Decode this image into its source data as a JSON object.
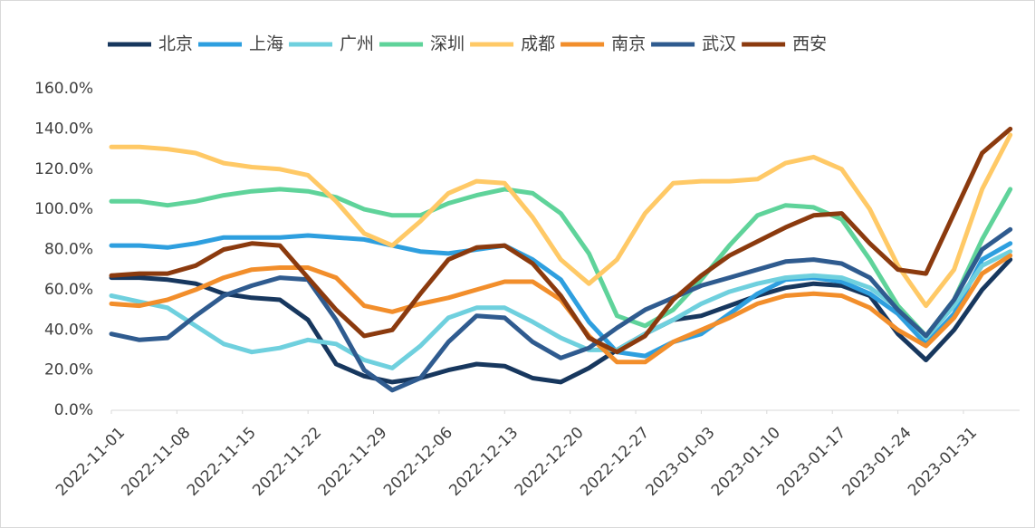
{
  "chart_data": {
    "type": "line",
    "x": [
      "2022-11-01",
      "2022-11-04",
      "2022-11-07",
      "2022-11-10",
      "2022-11-13",
      "2022-11-16",
      "2022-11-19",
      "2022-11-22",
      "2022-11-25",
      "2022-11-28",
      "2022-12-01",
      "2022-12-04",
      "2022-12-07",
      "2022-12-10",
      "2022-12-13",
      "2022-12-16",
      "2022-12-19",
      "2022-12-22",
      "2022-12-25",
      "2022-12-28",
      "2022-12-31",
      "2023-01-03",
      "2023-01-06",
      "2023-01-09",
      "2023-01-12",
      "2023-01-15",
      "2023-01-18",
      "2023-01-21",
      "2023-01-24",
      "2023-01-27",
      "2023-01-30",
      "2023-02-02",
      "2023-02-05"
    ],
    "xlim": [
      "2022-11-01",
      "2023-02-06"
    ],
    "xticks": [
      "2022-11-01",
      "2022-11-08",
      "2022-11-15",
      "2022-11-22",
      "2022-11-29",
      "2022-12-06",
      "2022-12-13",
      "2022-12-20",
      "2022-12-27",
      "2023-01-03",
      "2023-01-10",
      "2023-01-17",
      "2023-01-24",
      "2023-01-31"
    ],
    "ylim": [
      0,
      160
    ],
    "yticks": [
      {
        "value": 0,
        "label": "0.0%"
      },
      {
        "value": 20,
        "label": "20.0%"
      },
      {
        "value": 40,
        "label": "40.0%"
      },
      {
        "value": 60,
        "label": "60.0%"
      },
      {
        "value": 80,
        "label": "80.0%"
      },
      {
        "value": 100,
        "label": "100.0%"
      },
      {
        "value": 120,
        "label": "120.0%"
      },
      {
        "value": 140,
        "label": "140.0%"
      },
      {
        "value": 160,
        "label": "160.0%"
      }
    ],
    "legend": "top",
    "series": [
      {
        "name": "北京",
        "color": "#17375e",
        "values": [
          66,
          66,
          65,
          63,
          58,
          56,
          55,
          45,
          23,
          17,
          14,
          16,
          20,
          23,
          22,
          16,
          14,
          21,
          30,
          38,
          45,
          47,
          52,
          57,
          61,
          63,
          62,
          57,
          38,
          25,
          40,
          60,
          75
        ]
      },
      {
        "name": "上海",
        "color": "#2e9fdf",
        "values": [
          82,
          82,
          81,
          83,
          86,
          86,
          86,
          87,
          86,
          85,
          82,
          79,
          78,
          80,
          82,
          75,
          65,
          44,
          29,
          27,
          34,
          38,
          48,
          58,
          65,
          66,
          64,
          58,
          48,
          33,
          48,
          75,
          83
        ]
      },
      {
        "name": "广州",
        "color": "#6fd0de",
        "values": [
          57,
          54,
          51,
          42,
          33,
          29,
          31,
          35,
          33,
          25,
          21,
          32,
          46,
          51,
          51,
          44,
          36,
          30,
          30,
          38,
          45,
          53,
          59,
          63,
          66,
          67,
          66,
          61,
          51,
          36,
          52,
          72,
          79
        ]
      },
      {
        "name": "深圳",
        "color": "#5fd39a",
        "values": [
          104,
          104,
          102,
          104,
          107,
          109,
          110,
          109,
          106,
          100,
          97,
          97,
          103,
          107,
          110,
          108,
          98,
          78,
          47,
          42,
          50,
          65,
          82,
          97,
          102,
          101,
          95,
          75,
          52,
          37,
          55,
          85,
          110
        ]
      },
      {
        "name": "成都",
        "color": "#ffc966",
        "values": [
          131,
          131,
          130,
          128,
          123,
          121,
          120,
          117,
          104,
          88,
          82,
          94,
          108,
          114,
          113,
          96,
          75,
          63,
          75,
          98,
          113,
          114,
          114,
          115,
          123,
          126,
          120,
          100,
          72,
          52,
          70,
          110,
          137
        ]
      },
      {
        "name": "南京",
        "color": "#f28e2b",
        "values": [
          53,
          52,
          55,
          60,
          66,
          70,
          71,
          71,
          66,
          52,
          49,
          53,
          56,
          60,
          64,
          64,
          55,
          37,
          24,
          24,
          34,
          40,
          46,
          53,
          57,
          58,
          57,
          51,
          40,
          32,
          46,
          68,
          77
        ]
      },
      {
        "name": "武汉",
        "color": "#2f5b8f",
        "values": [
          38,
          35,
          36,
          47,
          57,
          62,
          66,
          65,
          45,
          20,
          10,
          16,
          34,
          47,
          46,
          34,
          26,
          31,
          41,
          50,
          56,
          62,
          66,
          70,
          74,
          75,
          73,
          66,
          50,
          37,
          55,
          80,
          90
        ]
      },
      {
        "name": "西安",
        "color": "#8b3a0e",
        "values": [
          67,
          68,
          68,
          72,
          80,
          83,
          82,
          66,
          50,
          37,
          40,
          58,
          75,
          81,
          82,
          73,
          57,
          36,
          29,
          37,
          55,
          67,
          77,
          84,
          91,
          97,
          98,
          83,
          70,
          68,
          98,
          128,
          140
        ]
      }
    ]
  }
}
